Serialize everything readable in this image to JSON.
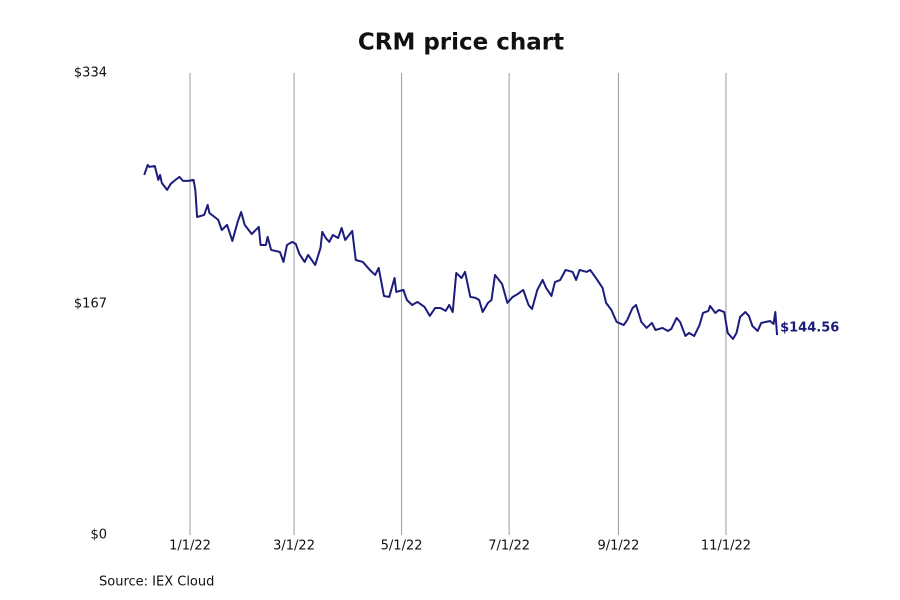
{
  "chart_data": {
    "type": "line",
    "title": "CRM price chart",
    "source": "Source: IEX Cloud",
    "x": [
      "2021-12-06",
      "2021-12-08",
      "2021-12-09",
      "2021-12-12",
      "2021-12-14",
      "2021-12-15",
      "2021-12-16",
      "2021-12-19",
      "2021-12-21",
      "2021-12-23",
      "2021-12-26",
      "2021-12-28",
      "2021-12-31",
      "2022-01-03",
      "2022-01-04",
      "2022-01-05",
      "2022-01-09",
      "2022-01-11",
      "2022-01-12",
      "2022-01-17",
      "2022-01-19",
      "2022-01-22",
      "2022-01-25",
      "2022-01-28",
      "2022-01-30",
      "2022-02-01",
      "2022-02-05",
      "2022-02-09",
      "2022-02-10",
      "2022-02-13",
      "2022-02-14",
      "2022-02-16",
      "2022-02-21",
      "2022-02-23",
      "2022-02-25",
      "2022-02-28",
      "2022-03-02",
      "2022-03-04",
      "2022-03-07",
      "2022-03-09",
      "2022-03-13",
      "2022-03-16",
      "2022-03-17",
      "2022-03-19",
      "2022-03-21",
      "2022-03-23",
      "2022-03-26",
      "2022-03-28",
      "2022-03-30",
      "2022-04-03",
      "2022-04-05",
      "2022-04-09",
      "2022-04-13",
      "2022-04-16",
      "2022-04-18",
      "2022-04-21",
      "2022-04-24",
      "2022-04-27",
      "2022-04-28",
      "2022-05-02",
      "2022-05-04",
      "2022-05-07",
      "2022-05-10",
      "2022-05-14",
      "2022-05-17",
      "2022-05-20",
      "2022-05-23",
      "2022-05-26",
      "2022-05-28",
      "2022-05-30",
      "2022-06-01",
      "2022-06-04",
      "2022-06-06",
      "2022-06-09",
      "2022-06-12",
      "2022-06-14",
      "2022-06-16",
      "2022-06-19",
      "2022-06-21",
      "2022-06-23",
      "2022-06-27",
      "2022-06-30",
      "2022-07-03",
      "2022-07-06",
      "2022-07-09",
      "2022-07-12",
      "2022-07-14",
      "2022-07-17",
      "2022-07-20",
      "2022-07-22",
      "2022-07-25",
      "2022-07-27",
      "2022-07-30",
      "2022-08-02",
      "2022-08-06",
      "2022-08-08",
      "2022-08-10",
      "2022-08-14",
      "2022-08-16",
      "2022-08-20",
      "2022-08-23",
      "2022-08-25",
      "2022-08-28",
      "2022-08-31",
      "2022-09-04",
      "2022-09-06",
      "2022-09-09",
      "2022-09-11",
      "2022-09-14",
      "2022-09-17",
      "2022-09-20",
      "2022-09-22",
      "2022-09-26",
      "2022-09-29",
      "2022-10-01",
      "2022-10-04",
      "2022-10-06",
      "2022-10-09",
      "2022-10-11",
      "2022-10-14",
      "2022-10-17",
      "2022-10-19",
      "2022-10-22",
      "2022-10-23",
      "2022-10-26",
      "2022-10-28",
      "2022-10-31",
      "2022-11-02",
      "2022-11-05",
      "2022-11-07",
      "2022-11-09",
      "2022-11-12",
      "2022-11-14",
      "2022-11-16",
      "2022-11-19",
      "2022-11-21",
      "2022-11-26",
      "2022-11-28",
      "2022-11-29",
      "2022-11-30"
    ],
    "series": [
      {
        "name": "CRM",
        "color": "#1c1c7c",
        "values": [
          260.3,
          267.5,
          266.1,
          266.8,
          256.7,
          260.3,
          254.5,
          249.5,
          253.8,
          256.0,
          258.9,
          256.0,
          256.0,
          256.7,
          249.5,
          229.9,
          231.4,
          238.6,
          232.8,
          227.8,
          220.5,
          224.2,
          212.6,
          226.3,
          233.5,
          224.2,
          217.6,
          222.7,
          209.7,
          209.7,
          215.5,
          206.1,
          204.6,
          197.4,
          209.7,
          211.9,
          210.4,
          203.2,
          197.4,
          202.5,
          195.2,
          207.5,
          219.1,
          214.7,
          211.9,
          216.9,
          214.7,
          222.0,
          213.3,
          219.8,
          198.8,
          197.4,
          191.6,
          188.0,
          193.1,
          172.8,
          172.1,
          185.8,
          175.7,
          177.2,
          169.9,
          166.3,
          168.5,
          164.9,
          158.4,
          164.1,
          164.1,
          162.0,
          166.3,
          161.2,
          189.4,
          185.8,
          190.2,
          172.1,
          171.4,
          169.9,
          161.2,
          167.8,
          169.9,
          188.0,
          181.5,
          167.8,
          172.1,
          174.3,
          177.2,
          166.3,
          163.4,
          177.2,
          184.4,
          178.6,
          172.8,
          182.9,
          184.4,
          191.6,
          190.2,
          184.4,
          191.6,
          190.2,
          191.6,
          184.4,
          178.6,
          167.8,
          162.7,
          154.0,
          151.8,
          155.5,
          164.1,
          166.3,
          154.0,
          149.7,
          153.3,
          148.2,
          149.7,
          147.5,
          149.0,
          156.9,
          154.0,
          143.9,
          146.1,
          143.9,
          151.8,
          160.5,
          162.0,
          165.6,
          160.5,
          162.7,
          161.2,
          146.1,
          141.7,
          146.1,
          157.6,
          161.2,
          158.4,
          151.1,
          147.5,
          153.3,
          154.7,
          152.6,
          161.2,
          144.56
        ],
        "last_label": "$144.56"
      }
    ],
    "xlim": [
      "2021-11-20",
      "2022-12-13"
    ],
    "xticks": [
      {
        "value": "2022-01-01",
        "label": "1/1/22"
      },
      {
        "value": "2022-03-01",
        "label": "3/1/22"
      },
      {
        "value": "2022-05-01",
        "label": "5/1/22"
      },
      {
        "value": "2022-07-01",
        "label": "7/1/22"
      },
      {
        "value": "2022-09-01",
        "label": "9/1/22"
      },
      {
        "value": "2022-11-01",
        "label": "11/1/22"
      }
    ],
    "ylim": [
      0,
      334
    ],
    "yticks": [
      {
        "value": 0,
        "label": "$0"
      },
      {
        "value": 167,
        "label": "$167"
      },
      {
        "value": 334,
        "label": "$334"
      }
    ],
    "grid": "x"
  }
}
